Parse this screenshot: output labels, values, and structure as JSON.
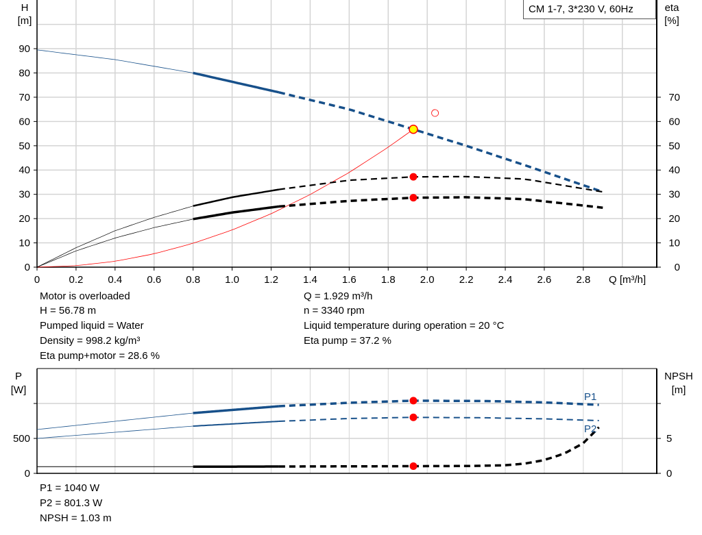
{
  "legend": "CM 1-7, 3*230 V, 60Hz",
  "info_left": [
    "Motor is overloaded",
    "H = 56.78 m",
    "Pumped liquid = Water",
    "Density = 998.2 kg/m³",
    "Eta pump+motor = 28.6 %"
  ],
  "info_right": [
    "Q = 1.929 m³/h",
    "n = 3340 rpm",
    "Liquid temperature during operation = 20 °C",
    "Eta pump = 37.2 %"
  ],
  "info_bottom": [
    "P1 = 1040 W",
    "P2 = 801.3 W",
    "NPSH = 1.03 m"
  ],
  "colors": {
    "head": "#17508a",
    "power": "#17508a",
    "eta": "#000000",
    "npsh": "#000000",
    "system": "#ff0000",
    "duty_point": "#ff0000",
    "duty_fill": "#ffff00",
    "grid": "#d4d4d4"
  },
  "chart_data": [
    {
      "type": "line",
      "xlabel": "Q [m³/h]",
      "ylabel": "H\n[m]",
      "y2label": "eta\n[%]",
      "xlim": [
        0,
        3.0
      ],
      "ylim": [
        0,
        100
      ],
      "x_ticks": [
        "0",
        "0.2",
        "0.4",
        "0.6",
        "0.8",
        "1.0",
        "1.2",
        "1.4",
        "1.6",
        "1.8",
        "2.0",
        "2.2",
        "2.4",
        "2.6",
        "2.8"
      ],
      "y_ticks": [
        "0",
        "10",
        "20",
        "30",
        "40",
        "50",
        "60",
        "70",
        "80",
        "90"
      ],
      "y2_ticks": [
        "0",
        "10",
        "20",
        "30",
        "40",
        "50",
        "60",
        "70"
      ],
      "grid": true,
      "series": [
        {
          "key": "H",
          "axis": "left",
          "x": [
            0,
            0.4,
            0.8,
            1.24,
            1.6,
            1.929,
            2.2,
            2.5,
            2.9
          ],
          "y": [
            89.5,
            85.5,
            80,
            72,
            65,
            56.78,
            50,
            42,
            31
          ]
        },
        {
          "key": "eta_pump",
          "axis": "right",
          "x": [
            0,
            0.2,
            0.4,
            0.6,
            0.8,
            1.0,
            1.24,
            1.6,
            1.929,
            2.2,
            2.5,
            2.9
          ],
          "y": [
            0,
            8,
            15,
            20.5,
            25.2,
            28.8,
            32,
            35.8,
            37.2,
            37.3,
            36.3,
            31
          ]
        },
        {
          "key": "eta_total",
          "axis": "right",
          "x": [
            0,
            0.2,
            0.4,
            0.6,
            0.8,
            1.0,
            1.24,
            1.6,
            1.929,
            2.2,
            2.5,
            2.9
          ],
          "y": [
            0,
            6.7,
            12,
            16.3,
            19.8,
            22.5,
            25,
            27.3,
            28.6,
            28.8,
            28,
            24.5
          ]
        },
        {
          "key": "system",
          "axis": "left",
          "x": [
            0,
            0.2,
            0.4,
            0.6,
            0.8,
            1.0,
            1.2,
            1.4,
            1.6,
            1.8,
            1.929
          ],
          "y": [
            0,
            0.6,
            2.4,
            5.5,
            9.8,
            15.3,
            22,
            29.9,
            39,
            49.4,
            56.78
          ]
        }
      ],
      "duty_point": {
        "Q": 1.929,
        "H": 56.78,
        "eta_pump": 37.2,
        "eta_total": 28.6
      },
      "open_marker": {
        "Q": 2.04,
        "H": 63.5
      }
    },
    {
      "type": "line",
      "ylabel": "P\n[W]",
      "y2label": "NPSH\n[m]",
      "xlim": [
        0,
        3.0
      ],
      "ylim": [
        0,
        1500
      ],
      "y2lim": [
        0,
        15
      ],
      "y_ticks": [
        "0",
        "500"
      ],
      "y2_ticks": [
        "0",
        "5"
      ],
      "grid": true,
      "series": [
        {
          "name": "P1",
          "axis": "left",
          "x": [
            0,
            0.8,
            1.24,
            1.6,
            1.929,
            2.3,
            2.6,
            2.88
          ],
          "y": [
            627,
            863,
            961,
            1010,
            1040,
            1035,
            1015,
            980
          ]
        },
        {
          "name": "P2",
          "axis": "left",
          "x": [
            0,
            0.8,
            1.24,
            1.6,
            1.929,
            2.3,
            2.6,
            2.88
          ],
          "y": [
            500,
            676,
            745,
            785,
            801.3,
            795,
            780,
            755
          ]
        },
        {
          "key": "NPSH",
          "axis": "right",
          "x": [
            0,
            0.8,
            1.24,
            1.6,
            1.929,
            2.2,
            2.4,
            2.5,
            2.6,
            2.7,
            2.8,
            2.88
          ],
          "y": [
            0.95,
            0.95,
            0.98,
            1.0,
            1.03,
            1.05,
            1.15,
            1.4,
            1.9,
            2.8,
            4.3,
            6.6
          ]
        }
      ],
      "duty_point": {
        "Q": 1.929,
        "P1": 1040,
        "P2": 801.3,
        "NPSH": 1.03
      }
    }
  ]
}
